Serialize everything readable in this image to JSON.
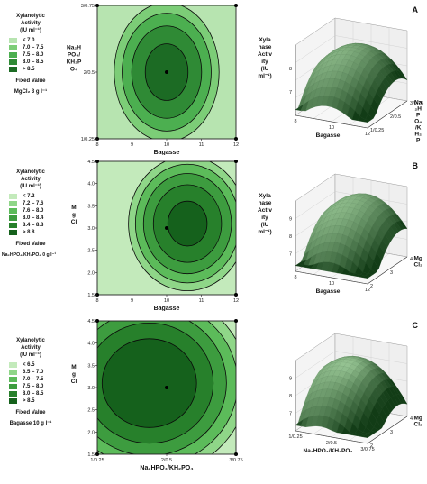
{
  "panels": [
    {
      "letter": "A",
      "legend": {
        "title": [
          "Xylanolytic",
          "Activity"
        ],
        "unit": "(IU ml⁻¹)",
        "items": [
          "< 7.0",
          "7.0 – 7.5",
          "7.5 – 8.0",
          "8.0 – 8.5",
          "> 8.5"
        ],
        "colors": [
          "#b7e4b0",
          "#7ccd77",
          "#4caf50",
          "#2f8a35",
          "#1c6b24"
        ],
        "fixed_title": "Fixed Value",
        "fixed_value": "MgCl₂  3 g l⁻¹"
      }
    },
    {
      "letter": "B",
      "legend": {
        "title": [
          "Xylanolytic",
          "Activity"
        ],
        "unit": "(IU ml⁻¹)",
        "items": [
          "< 7.2",
          "7.2 – 7.6",
          "7.6 – 8.0",
          "8.0 – 8.4",
          "8.4 – 8.8",
          "> 8.8"
        ],
        "colors": [
          "#c3eabb",
          "#8fd688",
          "#5cbb5a",
          "#3d9c3f",
          "#27802b",
          "#15611c"
        ],
        "fixed_title": "Fixed Value",
        "fixed_value": "Na₂HPO₄/KH₂PO₄ 0 g l⁻¹"
      }
    },
    {
      "letter": "C",
      "legend": {
        "title": [
          "Xylanolytic",
          "Activity"
        ],
        "unit": "(IU ml⁻¹)",
        "items": [
          "< 6.5",
          "6.5 – 7.0",
          "7.0 – 7.5",
          "7.5 – 8.0",
          "8.0 – 8.5",
          "> 8.5"
        ],
        "colors": [
          "#c3eabb",
          "#8fd688",
          "#5cbb5a",
          "#3d9c3f",
          "#27802b",
          "#15611c"
        ],
        "fixed_title": "Fixed Value",
        "fixed_value": "Bagasse 10 g l⁻¹"
      }
    }
  ],
  "chart_data": [
    {
      "type": "heatmap",
      "panel": "A",
      "xlabel": "Bagasse",
      "ylabel": [
        "Na₂H",
        "PO₄/",
        "KH₂P",
        "O₄"
      ],
      "xticks": [
        "8",
        "9",
        "10",
        "11",
        "12"
      ],
      "xlim": [
        8,
        12
      ],
      "yticks": [
        "1/0.25",
        "2/0.5",
        "3/0.75"
      ],
      "ylim": [
        1,
        3
      ],
      "center": [
        10,
        2
      ],
      "levels": [
        7.0,
        7.5,
        8.0,
        8.5
      ],
      "response": {
        "peak": 8.8,
        "cx": 10,
        "cy": 2,
        "ax": 0.8,
        "ay": 0.55
      },
      "colors": [
        "#b7e4b0",
        "#7ccd77",
        "#4caf50",
        "#2f8a35",
        "#1c6b24"
      ]
    },
    {
      "type": "surface",
      "panel": "A",
      "zlabel": [
        "Xyla",
        "nase",
        "Activ",
        "ity",
        "(IU",
        "ml⁻¹)"
      ],
      "xlabel": "Bagasse",
      "ylabel_right": [
        "Na",
        "₂H",
        "P",
        "O₄",
        "/K",
        "H₂",
        "P"
      ],
      "zticks": [
        "7",
        "8"
      ],
      "xticks": [
        "8",
        "10",
        "12"
      ],
      "yticks": [
        "1/0.25",
        "2/0.5",
        "3/0.75"
      ]
    },
    {
      "type": "heatmap",
      "panel": "B",
      "xlabel": "Bagasse",
      "ylabel": [
        "M",
        "g",
        "Cl"
      ],
      "xticks": [
        "8",
        "9",
        "10",
        "11",
        "12"
      ],
      "xlim": [
        8,
        12
      ],
      "yticks": [
        "1.5",
        "2.0",
        "2.5",
        "3.0",
        "3.5",
        "4.0",
        "4.5"
      ],
      "ylim": [
        1.5,
        4.5
      ],
      "center": [
        10,
        3
      ],
      "levels": [
        7.2,
        7.6,
        8.0,
        8.4,
        8.8
      ],
      "response": {
        "peak": 9.0,
        "cx": 10.6,
        "cy": 3.1,
        "ax": 0.9,
        "ay": 0.8
      },
      "colors": [
        "#c3eabb",
        "#8fd688",
        "#5cbb5a",
        "#3d9c3f",
        "#27802b",
        "#15611c"
      ]
    },
    {
      "type": "surface",
      "panel": "B",
      "zlabel": [
        "Xyla",
        "nase",
        "Activ",
        "ity",
        "(IU",
        "ml⁻¹)"
      ],
      "xlabel": "Bagasse",
      "ylabel_right": [
        "Mg",
        "Cl₂"
      ],
      "zticks": [
        "7",
        "8",
        "9"
      ],
      "xticks": [
        "8",
        "10",
        "12"
      ],
      "yticks": [
        "2",
        "3",
        "4"
      ]
    },
    {
      "type": "heatmap",
      "panel": "C",
      "xlabel": "Na₂HPO₄/KH₂PO₄",
      "ylabel": [
        "M",
        "g",
        "Cl"
      ],
      "xticks": [
        "1/0.25",
        "2/0.5",
        "3/0.75"
      ],
      "xlim": [
        1,
        3
      ],
      "yticks": [
        "1.5",
        "2.0",
        "2.5",
        "3.0",
        "3.5",
        "4.0",
        "4.5"
      ],
      "ylim": [
        1.5,
        4.5
      ],
      "center": [
        2,
        3
      ],
      "levels": [
        6.5,
        7.0,
        7.5,
        8.0,
        8.5
      ],
      "response": {
        "peak": 9.1,
        "cx": 1.75,
        "cy": 3.1,
        "ax": 0.75,
        "ay": 1.1
      },
      "colors": [
        "#c3eabb",
        "#8fd688",
        "#5cbb5a",
        "#3d9c3f",
        "#27802b",
        "#15611c"
      ]
    },
    {
      "type": "surface",
      "panel": "C",
      "xlabel": "Na₂HPO₄/KH₂PO₄",
      "ylabel_right": [
        "Mg",
        "Cl₂"
      ],
      "zticks": [
        "7",
        "8",
        "9"
      ],
      "xticks": [
        "1/0.25",
        "2/0.5",
        "3/0.75"
      ],
      "yticks": [
        "2",
        "3",
        "4"
      ]
    }
  ]
}
